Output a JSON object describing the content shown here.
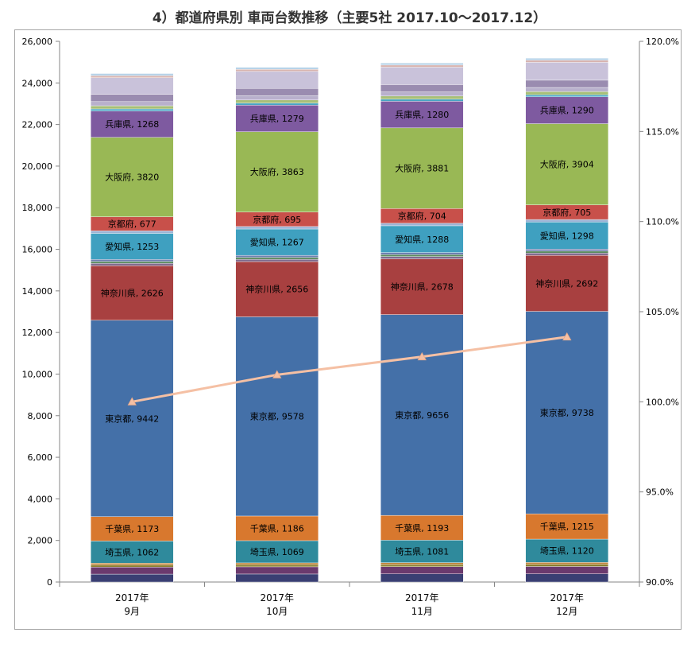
{
  "title": "4）都道府県別 車両台数推移（主要5社 2017.10～2017.12）",
  "chart_data": {
    "type": "bar",
    "stacked": true,
    "title": "4）都道府県別 車両台数推移（主要5社 2017.10～2017.12）",
    "categories": [
      [
        "2017年",
        "9月"
      ],
      [
        "2017年",
        "10月"
      ],
      [
        "2017年",
        "11月"
      ],
      [
        "2017年",
        "12月"
      ]
    ],
    "ylim": [
      0,
      26000
    ],
    "yticks": [
      "0",
      "2,000",
      "4,000",
      "6,000",
      "8,000",
      "10,000",
      "12,000",
      "14,000",
      "16,000",
      "18,000",
      "20,000",
      "22,000",
      "24,000",
      "26,000"
    ],
    "y2lim": [
      90,
      120
    ],
    "y2ticks": [
      "90.0%",
      "95.0%",
      "100.0%",
      "105.0%",
      "110.0%",
      "115.0%",
      "120.0%"
    ],
    "grid": false,
    "series": [
      {
        "color": "#3a3f73",
        "values": [
          380,
          385,
          390,
          395
        ]
      },
      {
        "color": "#6b3a6e",
        "values": [
          340,
          345,
          348,
          352
        ]
      },
      {
        "color": "#8a7f2e",
        "values": [
          100,
          100,
          102,
          103
        ]
      },
      {
        "color": "#c0833a",
        "values": [
          90,
          90,
          92,
          93
        ]
      },
      {
        "name": "埼玉県",
        "color": "#2f8a9c",
        "values": [
          1062,
          1069,
          1081,
          1120
        ]
      },
      {
        "name": "千葉県",
        "color": "#d8782e",
        "values": [
          1173,
          1186,
          1193,
          1215
        ]
      },
      {
        "name": "東京都",
        "color": "#4470a8",
        "values": [
          9442,
          9578,
          9656,
          9738
        ]
      },
      {
        "name": "神奈川県",
        "color": "#a84040",
        "values": [
          2626,
          2656,
          2678,
          2692
        ]
      },
      {
        "color": "#7f6a8e",
        "values": [
          110,
          110,
          112,
          112
        ]
      },
      {
        "color": "#5a8a5e",
        "values": [
          90,
          90,
          92,
          92
        ]
      },
      {
        "color": "#6f7fb0",
        "values": [
          100,
          100,
          100,
          100
        ]
      },
      {
        "name": "愛知県",
        "color": "#3fa0c0",
        "values": [
          1253,
          1267,
          1288,
          1298
        ]
      },
      {
        "color": "#9db4d6",
        "values": [
          120,
          120,
          122,
          122
        ]
      },
      {
        "name": "京都府",
        "color": "#c8504a",
        "values": [
          677,
          695,
          704,
          705
        ]
      },
      {
        "name": "大阪府",
        "color": "#99b855",
        "values": [
          3820,
          3863,
          3881,
          3904
        ]
      },
      {
        "name": "兵庫県",
        "color": "#7e5aa0",
        "values": [
          1268,
          1279,
          1280,
          1290
        ]
      },
      {
        "color": "#4aa6c4",
        "values": [
          100,
          100,
          100,
          100
        ]
      },
      {
        "color": "#a8bf78",
        "values": [
          150,
          150,
          150,
          150
        ]
      },
      {
        "color": "#b8b0cc",
        "values": [
          200,
          200,
          200,
          200
        ]
      },
      {
        "color": "#9a8cb0",
        "values": [
          350,
          350,
          350,
          350
        ]
      },
      {
        "color": "#c9c2da",
        "values": [
          800,
          820,
          840,
          860
        ]
      },
      {
        "color": "#d8b4b0",
        "values": [
          100,
          100,
          100,
          100
        ]
      },
      {
        "color": "#b7d3e8",
        "values": [
          100,
          100,
          100,
          100
        ]
      }
    ],
    "ratio_series": {
      "color": "#f5c0a4",
      "marker": "triangle",
      "values": [
        100.0,
        101.5,
        102.5,
        103.6
      ]
    }
  }
}
